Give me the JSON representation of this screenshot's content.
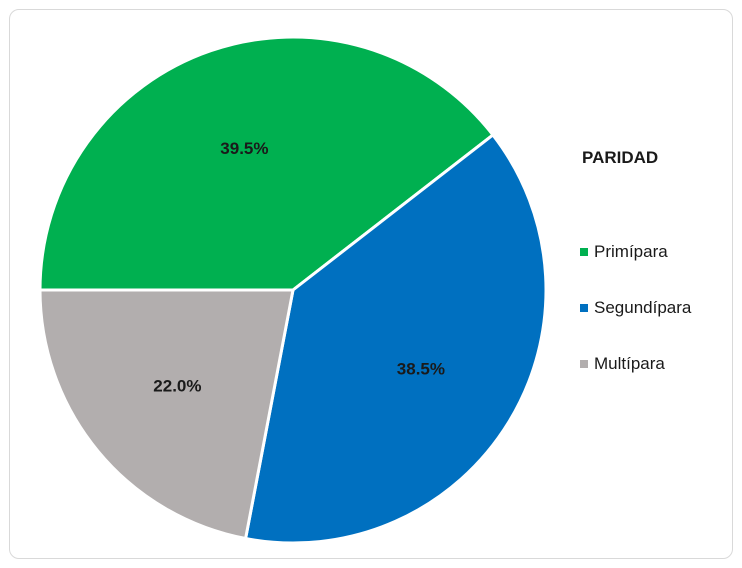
{
  "chart_data": {
    "type": "pie",
    "title": "PARIDAD",
    "legend_placement": "right",
    "slices": [
      {
        "name": "Primípara",
        "value": 39.5,
        "label": "39.5%",
        "color": "#00b050"
      },
      {
        "name": "Segundípara",
        "value": 38.5,
        "label": "38.5%",
        "color": "#0070c0"
      },
      {
        "name": "Multípara",
        "value": 22.0,
        "label": "22.0%",
        "color": "#b2aeae"
      }
    ]
  }
}
